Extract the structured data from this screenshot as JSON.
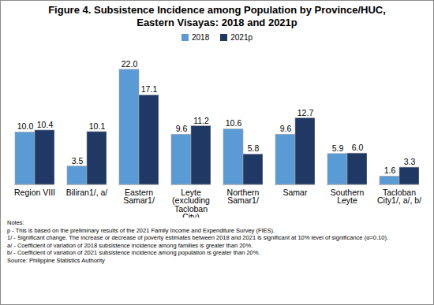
{
  "chart_data": {
    "type": "bar",
    "title": "Figure 4. Subsistence Incidence among Population by Province/HUC, Eastern Visayas: 2018 and 2021p",
    "categories": [
      "Region VIII",
      "Biliran1/, a/",
      "Eastern Samar1/",
      "Leyte (excluding Tacloban City)",
      "Northern Samar1/",
      "Samar",
      "Southern Leyte",
      "Tacloban City1/, a/, b/"
    ],
    "series": [
      {
        "name": "2018",
        "color": "#5b9bd5",
        "values": [
          10.0,
          3.5,
          22.0,
          9.6,
          10.6,
          9.6,
          5.9,
          1.6
        ],
        "value_labels": [
          "10.0",
          "3.5",
          "22.0",
          "9.6",
          "10.6",
          "9.6",
          "5.9",
          "1.6"
        ]
      },
      {
        "name": "2021p",
        "color": "#1f3864",
        "values": [
          10.4,
          10.1,
          17.1,
          11.2,
          5.8,
          12.7,
          6.0,
          3.3
        ],
        "value_labels": [
          "10.4",
          "10.1",
          "17.1",
          "11.2",
          "5.8",
          "12.7",
          "6.0",
          "3.3"
        ]
      }
    ],
    "ylim": [
      0,
      25
    ],
    "data_labels": true,
    "tick_labels": "x",
    "legend": "top",
    "notes": [
      "Notes:",
      "p - This is based on the preliminary results of the 2021 Family Income and Expenditure Survey (FIES).",
      "1/ - Significant change. The increase or decrease of poverty estimates between 2018 and 2021 is significant at 10% level of significance (α=0.10).",
      "a/ - Coefficient of variation of 2018 subsistence incidence among families is greater than 20%.",
      "b/ - Coefficient of variation of 2021 subsistence incidence among population is greater than 20%.",
      "Source: Philippine Statistics Authority"
    ]
  }
}
